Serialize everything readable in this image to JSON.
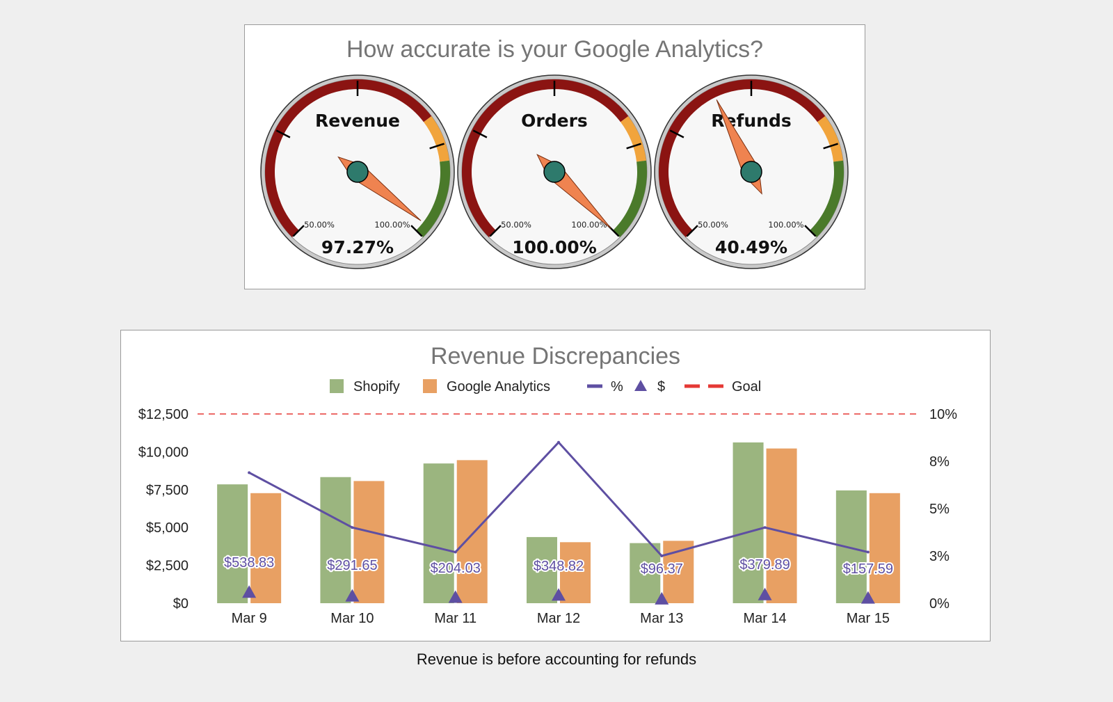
{
  "gauges_panel": {
    "title": "How accurate is your Google Analytics?",
    "gauges": [
      {
        "label": "Revenue",
        "value": 97.27,
        "display": "97.27%",
        "min_label": "50.00%",
        "max_label": "100.00%"
      },
      {
        "label": "Orders",
        "value": 100.0,
        "display": "100.00%",
        "min_label": "50.00%",
        "max_label": "100.00%"
      },
      {
        "label": "Refunds",
        "value": 40.49,
        "display": "40.49%",
        "min_label": "50.00%",
        "max_label": "100.00%"
      }
    ],
    "colors": {
      "red": "#8b1412",
      "orange": "#f1a43c",
      "green": "#4a7a2a",
      "needle": "#ef8350",
      "hub": "#2e7a6c"
    }
  },
  "chart_panel": {
    "title": "Revenue Discrepancies",
    "footnote": "Revenue is before accounting for refunds"
  },
  "chart_data": {
    "type": "bar",
    "title": "Revenue Discrepancies",
    "categories": [
      "Mar 9",
      "Mar 10",
      "Mar 11",
      "Mar 12",
      "Mar 13",
      "Mar 14",
      "Mar 15"
    ],
    "series": [
      {
        "name": "Shopify",
        "type": "bar",
        "axis": "left",
        "color": "#9bb57f",
        "values": [
          7850,
          8330,
          9230,
          4370,
          3970,
          10620,
          7450
        ]
      },
      {
        "name": "Google Analytics",
        "type": "bar",
        "axis": "left",
        "color": "#e8a063",
        "values": [
          7270,
          8070,
          9450,
          4030,
          4120,
          10220,
          7270
        ]
      },
      {
        "name": "%",
        "type": "line",
        "axis": "right",
        "color": "#5e4fa2",
        "values": [
          6.9,
          4.0,
          2.7,
          8.5,
          2.5,
          4.0,
          2.7
        ]
      },
      {
        "name": "$",
        "type": "scatter",
        "axis": "left",
        "color": "#5e4fa2",
        "marker": "triangle",
        "values": [
          538.83,
          291.65,
          204.03,
          348.82,
          96.37,
          379.89,
          157.59
        ],
        "labels": [
          "$538.83",
          "$291.65",
          "$204.03",
          "$348.82",
          "$96.37",
          "$379.89",
          "$157.59"
        ]
      },
      {
        "name": "Goal",
        "type": "line",
        "axis": "right",
        "color": "#e53935",
        "dash": true,
        "values": [
          10,
          10,
          10,
          10,
          10,
          10,
          10
        ]
      }
    ],
    "y_left": {
      "ticks": [
        "$0",
        "$2,500",
        "$5,000",
        "$7,500",
        "$10,000",
        "$12,500"
      ],
      "range": [
        0,
        12500
      ]
    },
    "y_right": {
      "ticks": [
        "0%",
        "3%",
        "5%",
        "8%",
        "10%"
      ],
      "range": [
        0,
        10
      ]
    },
    "legend": "top",
    "grid": false
  }
}
